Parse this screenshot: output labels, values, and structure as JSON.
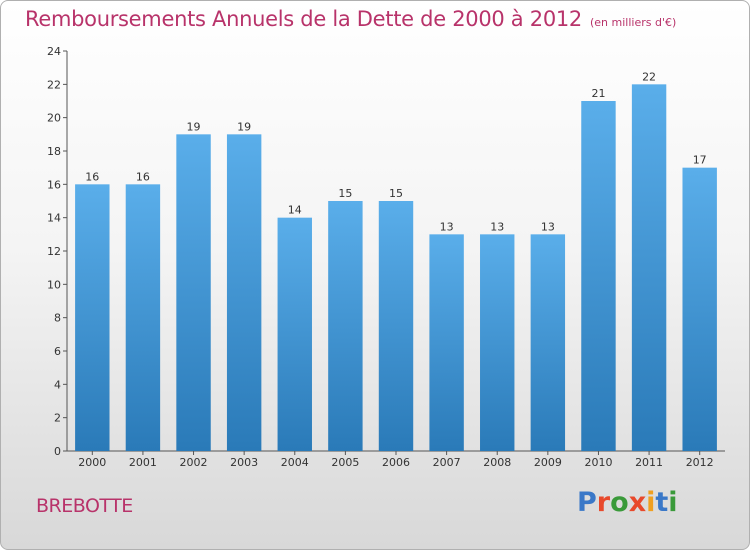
{
  "title": "Remboursements Annuels de la Dette de 2000 à 2012",
  "subtitle": "(en milliers d'€)",
  "commune": "BREBOTTE",
  "logo": {
    "letters": [
      "P",
      "r",
      "o",
      "x",
      "i",
      "t",
      "i"
    ],
    "colors": [
      "#3a78c8",
      "#e8492b",
      "#3a9a3a",
      "#e8492b",
      "#f0a020",
      "#3a78c8",
      "#3a9a3a"
    ]
  },
  "chart_data": {
    "type": "bar",
    "categories": [
      "2000",
      "2001",
      "2002",
      "2003",
      "2004",
      "2005",
      "2006",
      "2007",
      "2008",
      "2009",
      "2010",
      "2011",
      "2012"
    ],
    "values": [
      16,
      16,
      19,
      19,
      14,
      15,
      15,
      13,
      13,
      13,
      21,
      22,
      17
    ],
    "ylim": [
      0,
      24
    ],
    "yticks": [
      0,
      2,
      4,
      6,
      8,
      10,
      12,
      14,
      16,
      18,
      20,
      22,
      24
    ],
    "grid": false,
    "bar_color_top": "#5aaeea",
    "bar_color_bottom": "#2a7ab8"
  }
}
